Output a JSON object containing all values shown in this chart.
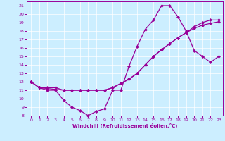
{
  "xlabel": "Windchill (Refroidissement éolien,°C)",
  "background_color": "#cceeff",
  "line_color": "#990099",
  "marker": "D",
  "markersize": 2.5,
  "linewidth": 0.9,
  "xlim": [
    -0.5,
    23.5
  ],
  "ylim": [
    8,
    21.5
  ],
  "xticks": [
    0,
    1,
    2,
    3,
    4,
    5,
    6,
    7,
    8,
    9,
    10,
    11,
    12,
    13,
    14,
    15,
    16,
    17,
    18,
    19,
    20,
    21,
    22,
    23
  ],
  "yticks": [
    8,
    9,
    10,
    11,
    12,
    13,
    14,
    15,
    16,
    17,
    18,
    19,
    20,
    21
  ],
  "curve1_x": [
    0,
    1,
    2,
    3,
    4,
    5,
    6,
    7,
    8,
    9,
    10,
    11,
    12,
    13,
    14,
    15,
    16,
    17,
    18,
    19,
    20,
    21,
    22,
    23
  ],
  "curve1_y": [
    12,
    11.3,
    11,
    11,
    9.8,
    9.0,
    8.6,
    8.0,
    8.5,
    8.8,
    11.0,
    11.0,
    13.8,
    16.2,
    18.2,
    19.3,
    21.0,
    21.0,
    19.7,
    18.0,
    15.7,
    15.0,
    14.3,
    15.0
  ],
  "curve2_x": [
    0,
    1,
    2,
    3,
    4,
    5,
    6,
    7,
    8,
    9,
    10,
    11,
    12,
    13,
    14,
    15,
    16,
    17,
    18,
    19,
    20,
    21,
    22,
    23
  ],
  "curve2_y": [
    12,
    11.3,
    11.3,
    11.3,
    11.0,
    11.0,
    11.0,
    11.0,
    11.0,
    11.0,
    11.3,
    11.8,
    12.3,
    13.0,
    14.0,
    15.0,
    15.8,
    16.5,
    17.2,
    17.8,
    18.3,
    18.7,
    18.9,
    19.1
  ],
  "curve3_x": [
    0,
    1,
    2,
    3,
    4,
    5,
    6,
    7,
    8,
    9,
    10,
    11,
    12,
    13,
    14,
    15,
    16,
    17,
    18,
    19,
    20,
    21,
    22,
    23
  ],
  "curve3_y": [
    12,
    11.3,
    11.2,
    11.1,
    11.0,
    11.0,
    11.0,
    11.0,
    11.0,
    11.0,
    11.3,
    11.8,
    12.3,
    13.0,
    14.0,
    15.0,
    15.8,
    16.5,
    17.2,
    17.8,
    18.5,
    19.0,
    19.3,
    19.3
  ]
}
